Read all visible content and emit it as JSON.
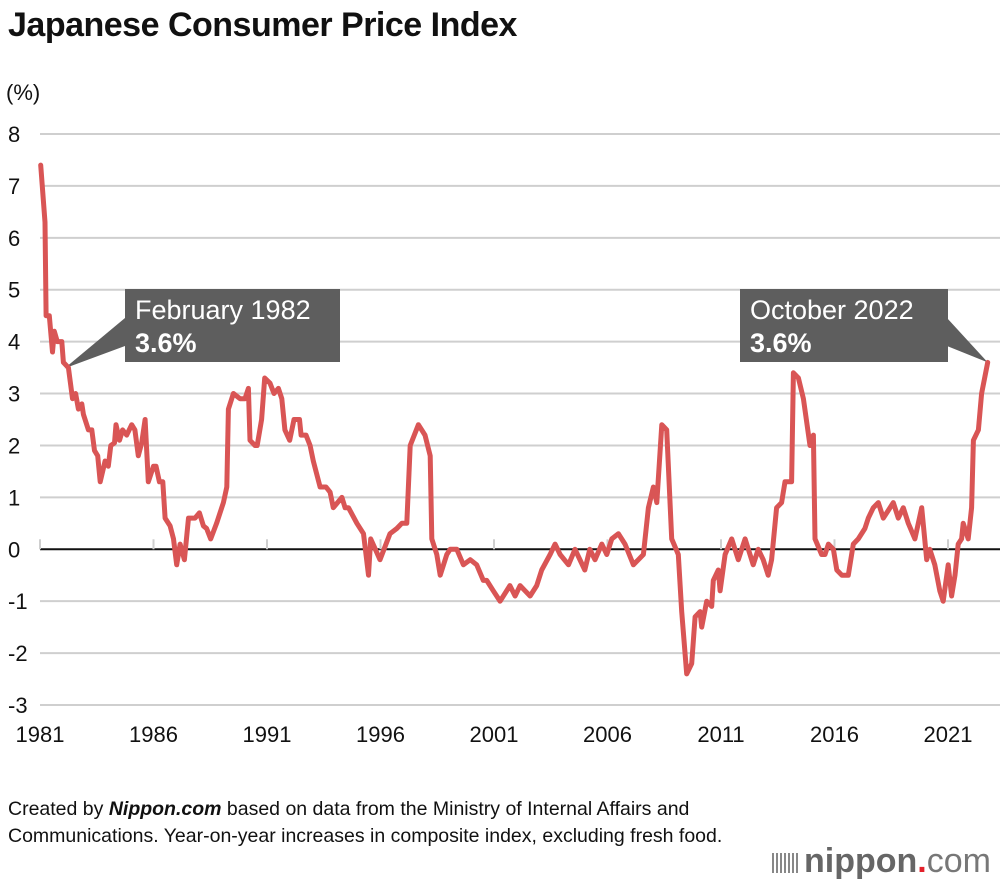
{
  "chart_data": {
    "type": "line",
    "title": "Japanese Consumer Price Index",
    "ylabel": "(%)",
    "xlabel": "",
    "ylim": [
      -3,
      8
    ],
    "xlim": [
      1981,
      2022.8
    ],
    "grid": true,
    "yticks": [
      "8",
      "7",
      "6",
      "5",
      "4",
      "3",
      "2",
      "1",
      "0",
      "-1",
      "-2",
      "-3"
    ],
    "xticks": [
      "1981",
      "1986",
      "1991",
      "1996",
      "2001",
      "2006",
      "2011",
      "2016",
      "2021"
    ],
    "color": "#d95555",
    "series": [
      {
        "x": [
          1981.03,
          1981.22,
          1981.27,
          1981.41,
          1981.55,
          1981.63,
          1981.76,
          1981.96,
          1982.03,
          1982.25,
          1982.43,
          1982.57,
          1982.69,
          1982.84,
          1982.91,
          1983.13,
          1983.28,
          1983.4,
          1983.54,
          1983.65,
          1983.87,
          1984.01,
          1984.12,
          1984.28,
          1984.35,
          1984.5,
          1984.64,
          1984.82,
          1985.04,
          1985.18,
          1985.33,
          1985.48,
          1985.63,
          1985.77,
          1986.0,
          1986.11,
          1986.26,
          1986.41,
          1986.51,
          1986.73,
          1986.88,
          1987.02,
          1987.17,
          1987.36,
          1987.54,
          1987.68,
          1987.83,
          1988.02,
          1988.2,
          1988.34,
          1988.52,
          1988.78,
          1989.08,
          1989.23,
          1989.3,
          1989.52,
          1989.81,
          1990.03,
          1990.18,
          1990.25,
          1990.47,
          1990.57,
          1990.76,
          1990.9,
          1991.13,
          1991.31,
          1991.5,
          1991.65,
          1991.79,
          1992.0,
          1992.19,
          1992.43,
          1992.5,
          1992.72,
          1992.9,
          1993.04,
          1993.34,
          1993.6,
          1993.78,
          1993.92,
          1994.3,
          1994.44,
          1994.59,
          1994.96,
          1995.25,
          1995.47,
          1995.57,
          1995.98,
          1996.42,
          1996.72,
          1996.94,
          1997.16,
          1997.31,
          1997.67,
          1997.96,
          1998.19,
          1998.26,
          1998.48,
          1998.63,
          1998.92,
          1999.07,
          1999.36,
          1999.65,
          1999.95,
          2000.24,
          2000.53,
          2000.68,
          2000.97,
          2001.27,
          2001.7,
          2001.93,
          2002.15,
          2002.37,
          2002.59,
          2002.88,
          2003.1,
          2003.47,
          2003.69,
          2003.91,
          2004.28,
          2004.57,
          2005.0,
          2005.22,
          2005.45,
          2005.75,
          2005.97,
          2006.19,
          2006.48,
          2006.77,
          2007.14,
          2007.58,
          2007.8,
          2008.02,
          2008.17,
          2008.39,
          2008.61,
          2008.83,
          2009.12,
          2009.27,
          2009.49,
          2009.71,
          2009.86,
          2010.08,
          2010.15,
          2010.37,
          2010.59,
          2010.66,
          2010.88,
          2010.96,
          2011.18,
          2011.47,
          2011.76,
          2012.06,
          2012.42,
          2012.64,
          2012.86,
          2013.08,
          2013.23,
          2013.45,
          2013.67,
          2013.82,
          2014.11,
          2014.19,
          2014.41,
          2014.63,
          2014.92,
          2015.07,
          2015.14,
          2015.43,
          2015.58,
          2015.73,
          2015.95,
          2016.1,
          2016.32,
          2016.61,
          2016.83,
          2017.05,
          2017.34,
          2017.49,
          2017.71,
          2017.93,
          2018.15,
          2018.3,
          2018.59,
          2018.81,
          2019.03,
          2019.25,
          2019.54,
          2019.84,
          2020.06,
          2020.2,
          2020.42,
          2020.64,
          2020.79,
          2021.01,
          2021.16,
          2021.31,
          2021.45,
          2021.6,
          2021.67,
          2021.89,
          2022.04,
          2022.12,
          2022.34,
          2022.48,
          2022.75
        ],
        "y": [
          7.4,
          6.3,
          4.5,
          4.5,
          3.8,
          4.2,
          4.0,
          4.0,
          3.6,
          3.5,
          2.9,
          3.0,
          2.7,
          2.8,
          2.6,
          2.3,
          2.3,
          1.9,
          1.8,
          1.3,
          1.7,
          1.6,
          2.0,
          2.05,
          2.4,
          2.1,
          2.3,
          2.2,
          2.4,
          2.3,
          1.8,
          2.05,
          2.5,
          1.3,
          1.6,
          1.6,
          1.3,
          1.3,
          0.6,
          0.45,
          0.2,
          -0.3,
          0.1,
          -0.2,
          0.6,
          0.6,
          0.6,
          0.7,
          0.45,
          0.4,
          0.2,
          0.5,
          0.9,
          1.2,
          2.7,
          3.0,
          2.9,
          2.9,
          3.1,
          2.1,
          2.0,
          2.0,
          2.5,
          3.3,
          3.2,
          3.0,
          3.1,
          2.9,
          2.3,
          2.1,
          2.5,
          2.5,
          2.2,
          2.2,
          2.0,
          1.7,
          1.2,
          1.2,
          1.1,
          0.8,
          1.0,
          0.8,
          0.8,
          0.5,
          0.3,
          -0.5,
          0.2,
          -0.2,
          0.3,
          0.4,
          0.5,
          0.5,
          2.0,
          2.4,
          2.2,
          1.8,
          0.2,
          -0.1,
          -0.5,
          -0.1,
          0.0,
          0.0,
          -0.3,
          -0.2,
          -0.3,
          -0.6,
          -0.6,
          -0.8,
          -1.0,
          -0.7,
          -0.9,
          -0.7,
          -0.8,
          -0.9,
          -0.7,
          -0.4,
          -0.1,
          0.1,
          -0.1,
          -0.3,
          0.0,
          -0.4,
          0.0,
          -0.2,
          0.1,
          -0.1,
          0.2,
          0.3,
          0.1,
          -0.3,
          -0.1,
          0.8,
          1.2,
          0.9,
          2.4,
          2.3,
          0.2,
          -0.1,
          -1.2,
          -2.4,
          -2.2,
          -1.3,
          -1.2,
          -1.5,
          -1.0,
          -1.1,
          -0.6,
          -0.4,
          -0.8,
          -0.1,
          0.2,
          -0.2,
          0.2,
          -0.3,
          0.0,
          -0.2,
          -0.5,
          -0.2,
          0.8,
          0.9,
          1.3,
          1.3,
          3.4,
          3.3,
          2.9,
          2.0,
          2.2,
          0.2,
          -0.1,
          -0.1,
          0.1,
          0.0,
          -0.4,
          -0.5,
          -0.5,
          0.1,
          0.2,
          0.4,
          0.6,
          0.8,
          0.9,
          0.6,
          0.7,
          0.9,
          0.6,
          0.8,
          0.5,
          0.2,
          0.8,
          -0.2,
          0.0,
          -0.3,
          -0.8,
          -1.0,
          -0.3,
          -0.9,
          -0.5,
          0.1,
          0.2,
          0.5,
          0.2,
          0.8,
          2.1,
          2.3,
          3.0,
          3.6
        ]
      }
    ],
    "annotations": [
      {
        "label": "February 1982",
        "value": "3.6%",
        "x": 1982.08,
        "y": 3.6
      },
      {
        "label": "October 2022",
        "value": "3.6%",
        "x": 2022.75,
        "y": 3.6
      }
    ]
  },
  "footer": {
    "created_by": "Created by ",
    "brand": "Nippon.com",
    "note": " based on data from the Ministry of Internal Affairs and Communications. Year-on-year increases in composite index, excluding fresh food."
  },
  "logo": {
    "name": "nippon",
    "dot": ".",
    "suffix": "com"
  }
}
